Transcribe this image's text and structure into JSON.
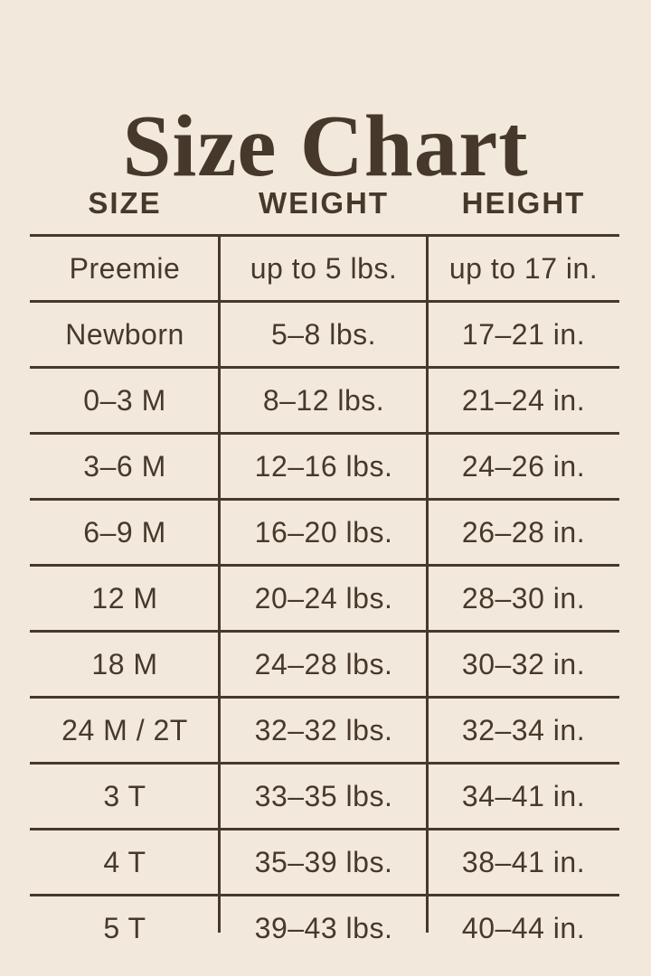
{
  "page_title": "Size Chart",
  "colors": {
    "background": "#F2E9DC",
    "ink": "#46392B"
  },
  "chart_data": {
    "type": "table",
    "title": "Size Chart",
    "columns": [
      "SIZE",
      "WEIGHT",
      "HEIGHT"
    ],
    "rows": [
      [
        "Preemie",
        "up to 5 lbs.",
        "up to 17 in."
      ],
      [
        "Newborn",
        "5–8 lbs.",
        "17–21 in."
      ],
      [
        "0–3 M",
        "8–12 lbs.",
        "21–24 in."
      ],
      [
        "3–6 M",
        "12–16 lbs.",
        "24–26 in."
      ],
      [
        "6–9 M",
        "16–20 lbs.",
        "26–28 in."
      ],
      [
        "12 M",
        "20–24 lbs.",
        "28–30 in."
      ],
      [
        "18 M",
        "24–28 lbs.",
        "30–32 in."
      ],
      [
        "24 M / 2T",
        "32–32 lbs.",
        "32–34 in."
      ],
      [
        "3 T",
        "33–35 lbs.",
        "34–41 in."
      ],
      [
        "4 T",
        "35–39 lbs.",
        "38–41 in."
      ],
      [
        "5 T",
        "39–43 lbs.",
        "40–44 in."
      ]
    ]
  }
}
